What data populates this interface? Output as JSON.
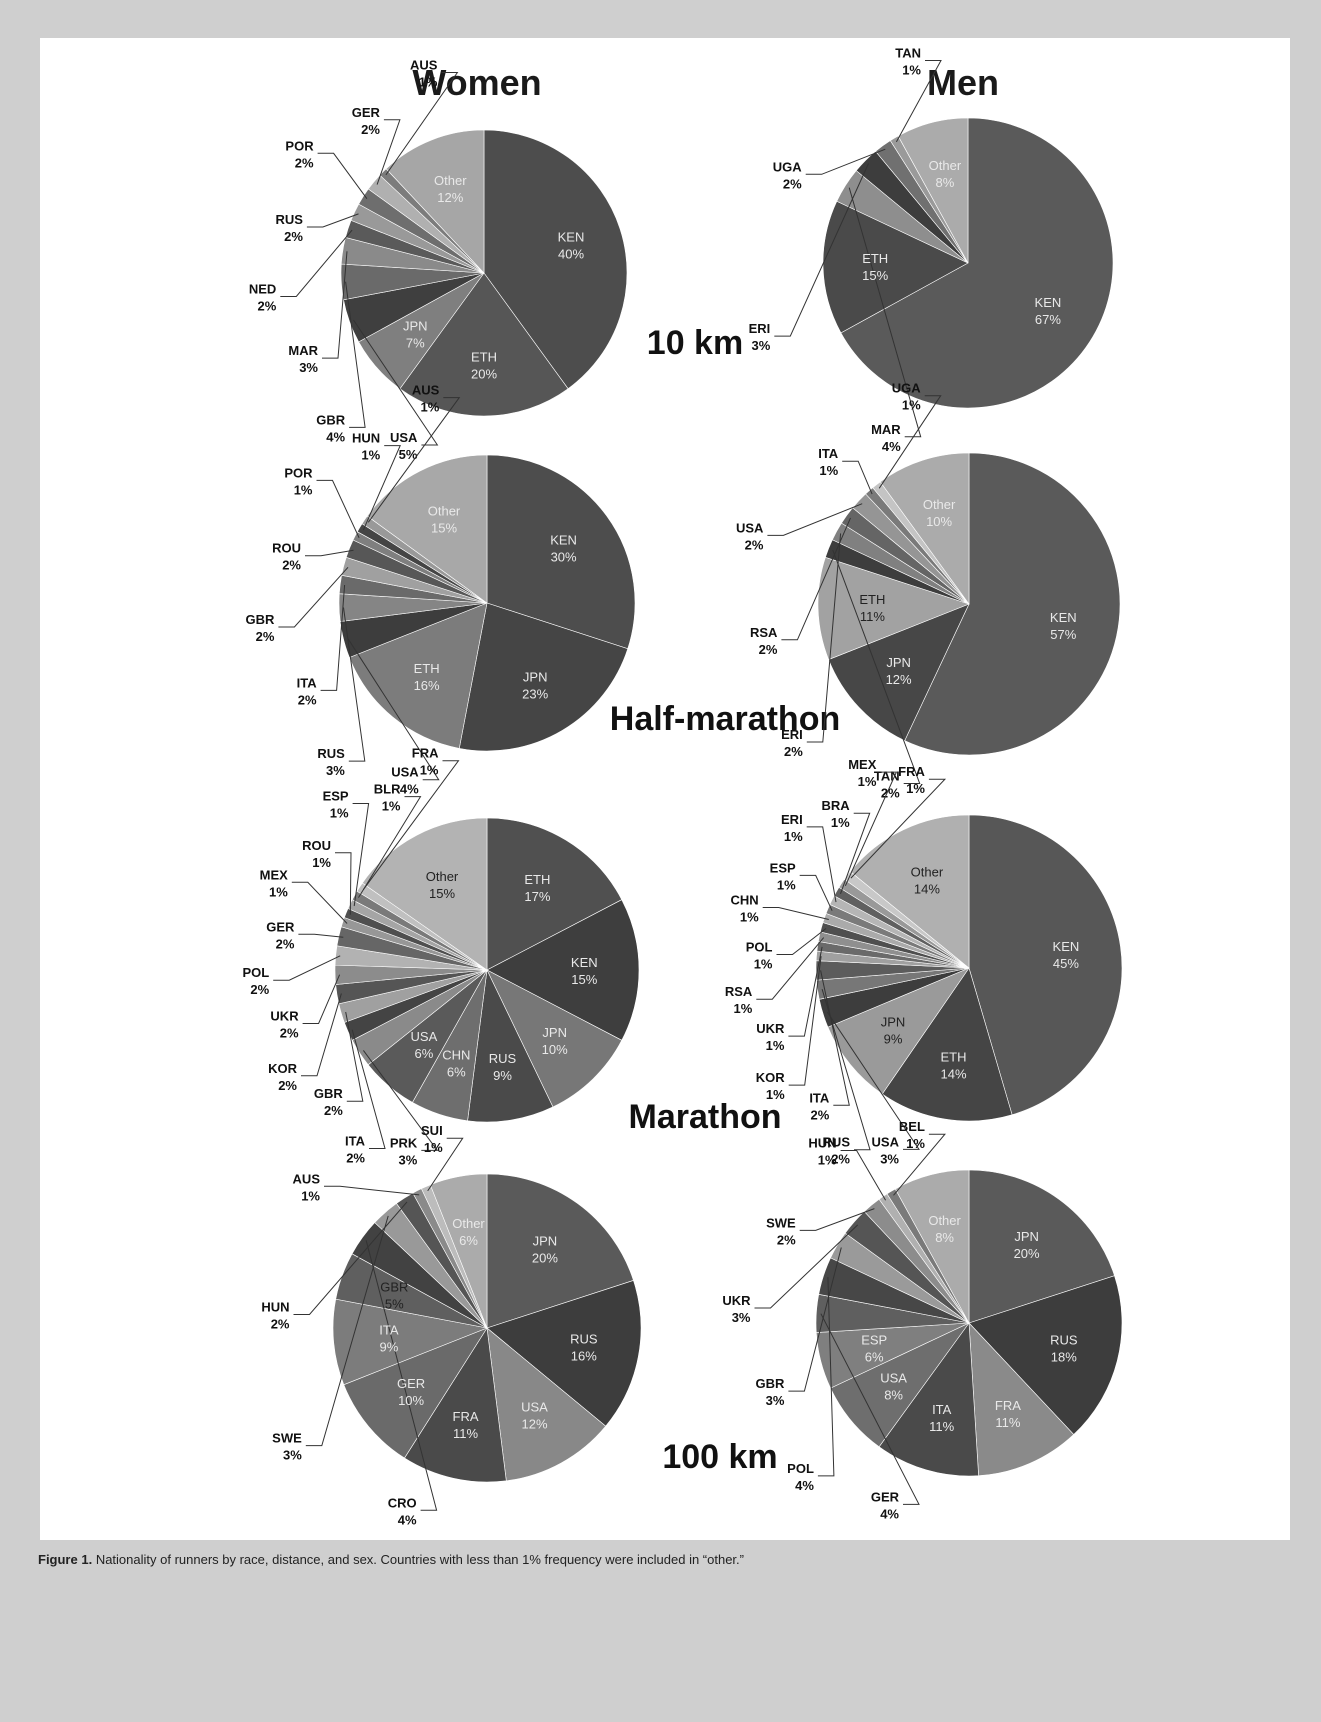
{
  "figure": {
    "women_header": "Women",
    "men_header": "Men",
    "distances": {
      "10km": "10 km",
      "half": "Half-marathon",
      "marathon": "Marathon",
      "100km": "100 km"
    },
    "caption_label": "Figure 1.",
    "caption_text": "Nationality of runners by race, distance, and sex. Countries with less than 1% frequency were included in “other.”"
  },
  "chart_data": [
    {
      "type": "pie",
      "id": "women-10km",
      "slices": [
        {
          "label": "KEN",
          "value": 40,
          "text": "40%",
          "color": "#4d4d4d",
          "inside": true
        },
        {
          "label": "ETH",
          "value": 20,
          "text": "20%",
          "color": "#565656",
          "inside": true
        },
        {
          "label": "JPN",
          "value": 7,
          "text": "7%",
          "color": "#7f7f7f",
          "inside": true
        },
        {
          "label": "USA",
          "value": 5,
          "text": "5%",
          "color": "#3f3f3f"
        },
        {
          "label": "GBR",
          "value": 4,
          "text": "4%",
          "color": "#6a6a6a"
        },
        {
          "label": "MAR",
          "value": 3,
          "text": "3%",
          "color": "#8a8a8a"
        },
        {
          "label": "NED",
          "value": 2,
          "text": "2%",
          "color": "#5a5a5a"
        },
        {
          "label": "RUS",
          "value": 2,
          "text": "2%",
          "color": "#999999"
        },
        {
          "label": "POR",
          "value": 2,
          "text": "2%",
          "color": "#6e6e6e"
        },
        {
          "label": "GER",
          "value": 2,
          "text": "2%",
          "color": "#b0b0b0"
        },
        {
          "label": "AUS",
          "value": 1,
          "text": "1%",
          "color": "#7c7c7c"
        },
        {
          "label": "Other",
          "value": 12,
          "text": "12%",
          "color": "#a6a6a6",
          "inside": true
        }
      ]
    },
    {
      "type": "pie",
      "id": "men-10km",
      "slices": [
        {
          "label": "KEN",
          "value": 67,
          "text": "67%",
          "color": "#5a5a5a",
          "inside": true
        },
        {
          "label": "ETH",
          "value": 15,
          "text": "15%",
          "color": "#4a4a4a",
          "inside": true
        },
        {
          "label": "MAR",
          "value": 4,
          "text": "4%",
          "color": "#8e8e8e"
        },
        {
          "label": "ERI",
          "value": 3,
          "text": "3%",
          "color": "#3d3d3d"
        },
        {
          "label": "UGA",
          "value": 2,
          "text": "2%",
          "color": "#707070"
        },
        {
          "label": "TAN",
          "value": 1,
          "text": "1%",
          "color": "#9a9a9a"
        },
        {
          "label": "Other",
          "value": 8,
          "text": "8%",
          "color": "#ababab",
          "inside": true
        }
      ]
    },
    {
      "type": "pie",
      "id": "women-half",
      "slices": [
        {
          "label": "KEN",
          "value": 30,
          "text": "30%",
          "color": "#4d4d4d",
          "inside": true
        },
        {
          "label": "JPN",
          "value": 23,
          "text": "23%",
          "color": "#454545",
          "inside": true
        },
        {
          "label": "ETH",
          "value": 16,
          "text": "16%",
          "color": "#7c7c7c",
          "inside": true
        },
        {
          "label": "USA",
          "value": 4,
          "text": "4%",
          "color": "#3d3d3d"
        },
        {
          "label": "RUS",
          "value": 3,
          "text": "3%",
          "color": "#858585"
        },
        {
          "label": "ITA",
          "value": 2,
          "text": "2%",
          "color": "#6a6a6a"
        },
        {
          "label": "GBR",
          "value": 2,
          "text": "2%",
          "color": "#a0a0a0"
        },
        {
          "label": "ROU",
          "value": 2,
          "text": "2%",
          "color": "#575757"
        },
        {
          "label": "POR",
          "value": 1,
          "text": "1%",
          "color": "#7f7f7f"
        },
        {
          "label": "HUN",
          "value": 1,
          "text": "1%",
          "color": "#454545"
        },
        {
          "label": "AUS",
          "value": 1,
          "text": "1%",
          "color": "#999999"
        },
        {
          "label": "Other",
          "value": 15,
          "text": "15%",
          "color": "#a8a8a8",
          "inside": true
        }
      ]
    },
    {
      "type": "pie",
      "id": "men-half",
      "slices": [
        {
          "label": "KEN",
          "value": 57,
          "text": "57%",
          "color": "#5a5a5a",
          "inside": true
        },
        {
          "label": "JPN",
          "value": 12,
          "text": "12%",
          "color": "#474747",
          "inside": true
        },
        {
          "label": "ETH",
          "value": 11,
          "text": "11%",
          "color": "#a2a2a2",
          "inside": true,
          "dark": true
        },
        {
          "label": "TAN",
          "value": 2,
          "text": "2%",
          "color": "#3d3d3d"
        },
        {
          "label": "ERI",
          "value": 2,
          "text": "2%",
          "color": "#808080"
        },
        {
          "label": "RSA",
          "value": 2,
          "text": "2%",
          "color": "#656565"
        },
        {
          "label": "USA",
          "value": 2,
          "text": "2%",
          "color": "#959595"
        },
        {
          "label": "ITA",
          "value": 1,
          "text": "1%",
          "color": "#7a7a7a"
        },
        {
          "label": "UGA",
          "value": 1,
          "text": "1%",
          "color": "#c4c4c4"
        },
        {
          "label": "Other",
          "value": 10,
          "text": "10%",
          "color": "#ababab",
          "inside": true
        }
      ]
    },
    {
      "type": "pie",
      "id": "women-marathon",
      "slices": [
        {
          "label": "ETH",
          "value": 17,
          "text": "17%",
          "color": "#505050",
          "inside": true
        },
        {
          "label": "KEN",
          "value": 15,
          "text": "15%",
          "color": "#3e3e3e",
          "inside": true
        },
        {
          "label": "JPN",
          "value": 10,
          "text": "10%",
          "color": "#777777",
          "inside": true
        },
        {
          "label": "RUS",
          "value": 9,
          "text": "9%",
          "color": "#4a4a4a",
          "inside": true
        },
        {
          "label": "CHN",
          "value": 6,
          "text": "6%",
          "color": "#6e6e6e",
          "inside": true
        },
        {
          "label": "USA",
          "value": 6,
          "text": "6%",
          "color": "#5a5a5a",
          "inside": true
        },
        {
          "label": "PRK",
          "value": 3,
          "text": "3%",
          "color": "#8a8a8a"
        },
        {
          "label": "ITA",
          "value": 2,
          "text": "2%",
          "color": "#444444"
        },
        {
          "label": "GBR",
          "value": 2,
          "text": "2%",
          "color": "#a0a0a0"
        },
        {
          "label": "KOR",
          "value": 2,
          "text": "2%",
          "color": "#555555"
        },
        {
          "label": "UKR",
          "value": 2,
          "text": "2%",
          "color": "#8c8c8c"
        },
        {
          "label": "POL",
          "value": 2,
          "text": "2%",
          "color": "#b2b2b2"
        },
        {
          "label": "GER",
          "value": 2,
          "text": "2%",
          "color": "#666666"
        },
        {
          "label": "MEX",
          "value": 1,
          "text": "1%",
          "color": "#979797"
        },
        {
          "label": "ROU",
          "value": 1,
          "text": "1%",
          "color": "#4f4f4f"
        },
        {
          "label": "ESP",
          "value": 1,
          "text": "1%",
          "color": "#a5a5a5"
        },
        {
          "label": "BLR",
          "value": 1,
          "text": "1%",
          "color": "#7a7a7a"
        },
        {
          "label": "FRA",
          "value": 1,
          "text": "1%",
          "color": "#c0c0c0"
        },
        {
          "label": "Other",
          "value": 15,
          "text": "15%",
          "color": "#b3b3b3",
          "inside": true,
          "dark": true
        }
      ]
    },
    {
      "type": "pie",
      "id": "men-marathon",
      "slices": [
        {
          "label": "KEN",
          "value": 45,
          "text": "45%",
          "color": "#575757",
          "inside": true
        },
        {
          "label": "ETH",
          "value": 14,
          "text": "14%",
          "color": "#454545",
          "inside": true
        },
        {
          "label": "JPN",
          "value": 9,
          "text": "9%",
          "color": "#9a9a9a",
          "inside": true,
          "dark": true
        },
        {
          "label": "USA",
          "value": 3,
          "text": "3%",
          "color": "#3d3d3d"
        },
        {
          "label": "RUS",
          "value": 2,
          "text": "2%",
          "color": "#777777"
        },
        {
          "label": "ITA",
          "value": 2,
          "text": "2%",
          "color": "#5c5c5c"
        },
        {
          "label": "KOR",
          "value": 1,
          "text": "1%",
          "color": "#a0a0a0"
        },
        {
          "label": "UKR",
          "value": 1,
          "text": "1%",
          "color": "#6a6a6a"
        },
        {
          "label": "RSA",
          "value": 1,
          "text": "1%",
          "color": "#8f8f8f"
        },
        {
          "label": "POL",
          "value": 1,
          "text": "1%",
          "color": "#4f4f4f"
        },
        {
          "label": "CHN",
          "value": 1,
          "text": "1%",
          "color": "#aaaaaa"
        },
        {
          "label": "ESP",
          "value": 1,
          "text": "1%",
          "color": "#7a7a7a"
        },
        {
          "label": "ERI",
          "value": 1,
          "text": "1%",
          "color": "#b5b5b5"
        },
        {
          "label": "BRA",
          "value": 1,
          "text": "1%",
          "color": "#606060"
        },
        {
          "label": "MEX",
          "value": 1,
          "text": "1%",
          "color": "#999999"
        },
        {
          "label": "FRA",
          "value": 1,
          "text": "1%",
          "color": "#c8c8c8"
        },
        {
          "label": "Other",
          "value": 14,
          "text": "14%",
          "color": "#b0b0b0",
          "inside": true,
          "dark": true
        }
      ]
    },
    {
      "type": "pie",
      "id": "women-100km",
      "slices": [
        {
          "label": "JPN",
          "value": 20,
          "text": "20%",
          "color": "#5a5a5a",
          "inside": true
        },
        {
          "label": "RUS",
          "value": 16,
          "text": "16%",
          "color": "#3d3d3d",
          "inside": true
        },
        {
          "label": "USA",
          "value": 12,
          "text": "12%",
          "color": "#888888",
          "inside": true
        },
        {
          "label": "FRA",
          "value": 11,
          "text": "11%",
          "color": "#4a4a4a",
          "inside": true
        },
        {
          "label": "GER",
          "value": 10,
          "text": "10%",
          "color": "#6a6a6a",
          "inside": true
        },
        {
          "label": "ITA",
          "value": 9,
          "text": "9%",
          "color": "#7c7c7c",
          "inside": true
        },
        {
          "label": "GBR",
          "value": 5,
          "text": "5%",
          "color": "#5f5f5f",
          "inside": true,
          "dark": true
        },
        {
          "label": "CRO",
          "value": 4,
          "text": "4%",
          "color": "#424242"
        },
        {
          "label": "SWE",
          "value": 3,
          "text": "3%",
          "color": "#999999"
        },
        {
          "label": "HUN",
          "value": 2,
          "text": "2%",
          "color": "#555555"
        },
        {
          "label": "AUS",
          "value": 1,
          "text": "1%",
          "color": "#8a8a8a"
        },
        {
          "label": "SUI",
          "value": 1,
          "text": "1%",
          "color": "#bcbcbc"
        },
        {
          "label": "Other",
          "value": 6,
          "text": "6%",
          "color": "#ababab",
          "inside": true
        }
      ]
    },
    {
      "type": "pie",
      "id": "men-100km",
      "slices": [
        {
          "label": "JPN",
          "value": 20,
          "text": "20%",
          "color": "#5a5a5a",
          "inside": true
        },
        {
          "label": "RUS",
          "value": 18,
          "text": "18%",
          "color": "#3d3d3d",
          "inside": true
        },
        {
          "label": "FRA",
          "value": 11,
          "text": "11%",
          "color": "#8a8a8a",
          "inside": true
        },
        {
          "label": "ITA",
          "value": 11,
          "text": "11%",
          "color": "#4a4a4a",
          "inside": true
        },
        {
          "label": "USA",
          "value": 8,
          "text": "8%",
          "color": "#6e6e6e",
          "inside": true
        },
        {
          "label": "ESP",
          "value": 6,
          "text": "6%",
          "color": "#7f7f7f",
          "inside": true
        },
        {
          "label": "GER",
          "value": 4,
          "text": "4%",
          "color": "#5f5f5f"
        },
        {
          "label": "POL",
          "value": 4,
          "text": "4%",
          "color": "#474747"
        },
        {
          "label": "GBR",
          "value": 3,
          "text": "3%",
          "color": "#9a9a9a"
        },
        {
          "label": "UKR",
          "value": 3,
          "text": "3%",
          "color": "#555555"
        },
        {
          "label": "SWE",
          "value": 2,
          "text": "2%",
          "color": "#8c8c8c"
        },
        {
          "label": "HUN",
          "value": 1,
          "text": "1%",
          "color": "#b0b0b0"
        },
        {
          "label": "BEL",
          "value": 1,
          "text": "1%",
          "color": "#7a7a7a"
        },
        {
          "label": "Other",
          "value": 8,
          "text": "8%",
          "color": "#ababab",
          "inside": true
        }
      ]
    }
  ]
}
